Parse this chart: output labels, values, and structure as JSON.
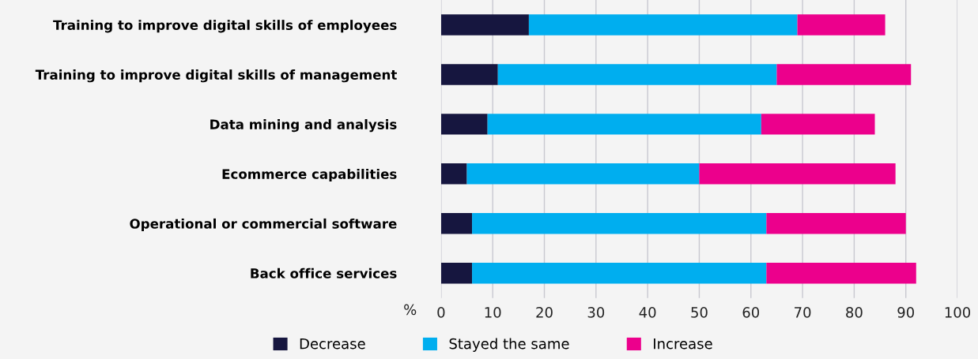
{
  "chart_data": {
    "type": "bar",
    "orientation": "horizontal",
    "stacked": true,
    "xlabel": "%",
    "categories": [
      "Training to improve digital skills of employees",
      "Training to improve digital skills of management",
      "Data mining and analysis",
      "Ecommerce capabilities",
      "Operational or commercial software",
      "Back office services"
    ],
    "series": [
      {
        "name": "Decrease",
        "color": "#16163f",
        "values": [
          17,
          11,
          9,
          5,
          6,
          6
        ]
      },
      {
        "name": "Stayed the same",
        "color": "#00aeef",
        "values": [
          52,
          54,
          53,
          45,
          57,
          57
        ]
      },
      {
        "name": "Increase",
        "color": "#ec008c",
        "values": [
          17,
          26,
          22,
          38,
          27,
          29
        ]
      }
    ],
    "xlim": [
      0,
      100
    ],
    "xticks": [
      0,
      10,
      20,
      30,
      40,
      50,
      60,
      70,
      80,
      90,
      100
    ],
    "grid": "x",
    "legend": "bottom"
  }
}
